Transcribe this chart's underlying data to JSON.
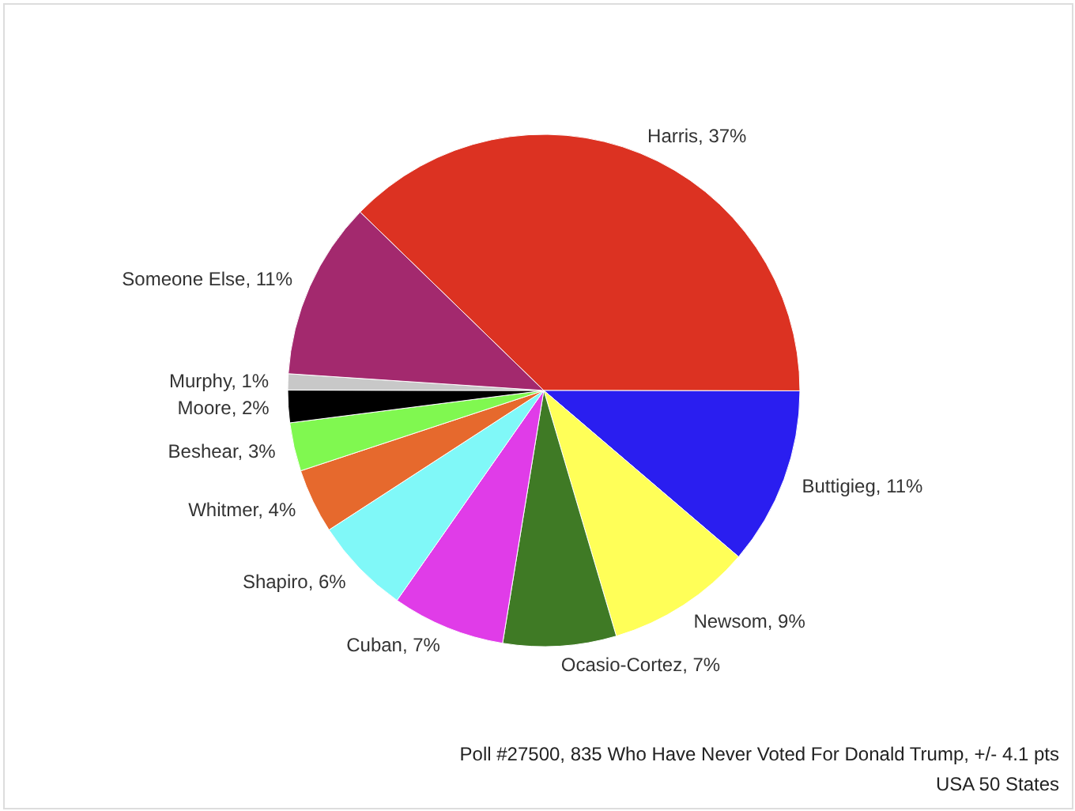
{
  "chart_data": {
    "type": "pie",
    "categories": [
      "Harris",
      "Buttigieg",
      "Newsom",
      "Ocasio-Cortez",
      "Cuban",
      "Shapiro",
      "Whitmer",
      "Beshear",
      "Moore",
      "Murphy",
      "Someone Else"
    ],
    "values": [
      37,
      11,
      9,
      7,
      7,
      6,
      4,
      3,
      2,
      1,
      11
    ],
    "value_labels": [
      "37%",
      "11%",
      "9%",
      "7%",
      "7%",
      "6%",
      "4%",
      "3%",
      "2%",
      "1%",
      "11%"
    ],
    "colors": [
      "#dc3222",
      "#2a1ef0",
      "#ffff58",
      "#3f7a25",
      "#e03ce8",
      "#80f8f8",
      "#e6692d",
      "#80f850",
      "#000000",
      "#c8c8c8",
      "#a3296e"
    ],
    "annotations": [
      "Poll #27500, 835 Who Have Never Voted For Donald Trump, +/- 4.1 pts",
      "USA 50 States"
    ]
  }
}
